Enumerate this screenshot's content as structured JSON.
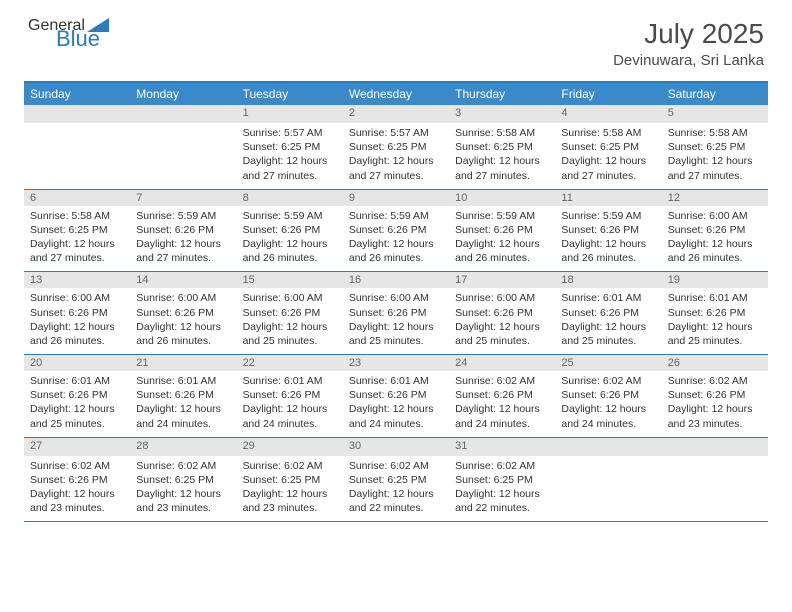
{
  "logo": {
    "part1": "General",
    "part2": "Blue"
  },
  "title": "July 2025",
  "location": "Devinuwara, Sri Lanka",
  "colors": {
    "header_bg": "#3a8ac9",
    "border": "#2b7bbf",
    "daynum_bg": "#e6e6e6",
    "text": "#333333",
    "title_text": "#4a4a4a"
  },
  "day_names": [
    "Sunday",
    "Monday",
    "Tuesday",
    "Wednesday",
    "Thursday",
    "Friday",
    "Saturday"
  ],
  "weeks": [
    [
      null,
      null,
      {
        "n": "1",
        "sr": "5:57 AM",
        "ss": "6:25 PM",
        "dl": "12 hours and 27 minutes."
      },
      {
        "n": "2",
        "sr": "5:57 AM",
        "ss": "6:25 PM",
        "dl": "12 hours and 27 minutes."
      },
      {
        "n": "3",
        "sr": "5:58 AM",
        "ss": "6:25 PM",
        "dl": "12 hours and 27 minutes."
      },
      {
        "n": "4",
        "sr": "5:58 AM",
        "ss": "6:25 PM",
        "dl": "12 hours and 27 minutes."
      },
      {
        "n": "5",
        "sr": "5:58 AM",
        "ss": "6:25 PM",
        "dl": "12 hours and 27 minutes."
      }
    ],
    [
      {
        "n": "6",
        "sr": "5:58 AM",
        "ss": "6:25 PM",
        "dl": "12 hours and 27 minutes."
      },
      {
        "n": "7",
        "sr": "5:59 AM",
        "ss": "6:26 PM",
        "dl": "12 hours and 27 minutes."
      },
      {
        "n": "8",
        "sr": "5:59 AM",
        "ss": "6:26 PM",
        "dl": "12 hours and 26 minutes."
      },
      {
        "n": "9",
        "sr": "5:59 AM",
        "ss": "6:26 PM",
        "dl": "12 hours and 26 minutes."
      },
      {
        "n": "10",
        "sr": "5:59 AM",
        "ss": "6:26 PM",
        "dl": "12 hours and 26 minutes."
      },
      {
        "n": "11",
        "sr": "5:59 AM",
        "ss": "6:26 PM",
        "dl": "12 hours and 26 minutes."
      },
      {
        "n": "12",
        "sr": "6:00 AM",
        "ss": "6:26 PM",
        "dl": "12 hours and 26 minutes."
      }
    ],
    [
      {
        "n": "13",
        "sr": "6:00 AM",
        "ss": "6:26 PM",
        "dl": "12 hours and 26 minutes."
      },
      {
        "n": "14",
        "sr": "6:00 AM",
        "ss": "6:26 PM",
        "dl": "12 hours and 26 minutes."
      },
      {
        "n": "15",
        "sr": "6:00 AM",
        "ss": "6:26 PM",
        "dl": "12 hours and 25 minutes."
      },
      {
        "n": "16",
        "sr": "6:00 AM",
        "ss": "6:26 PM",
        "dl": "12 hours and 25 minutes."
      },
      {
        "n": "17",
        "sr": "6:00 AM",
        "ss": "6:26 PM",
        "dl": "12 hours and 25 minutes."
      },
      {
        "n": "18",
        "sr": "6:01 AM",
        "ss": "6:26 PM",
        "dl": "12 hours and 25 minutes."
      },
      {
        "n": "19",
        "sr": "6:01 AM",
        "ss": "6:26 PM",
        "dl": "12 hours and 25 minutes."
      }
    ],
    [
      {
        "n": "20",
        "sr": "6:01 AM",
        "ss": "6:26 PM",
        "dl": "12 hours and 25 minutes."
      },
      {
        "n": "21",
        "sr": "6:01 AM",
        "ss": "6:26 PM",
        "dl": "12 hours and 24 minutes."
      },
      {
        "n": "22",
        "sr": "6:01 AM",
        "ss": "6:26 PM",
        "dl": "12 hours and 24 minutes."
      },
      {
        "n": "23",
        "sr": "6:01 AM",
        "ss": "6:26 PM",
        "dl": "12 hours and 24 minutes."
      },
      {
        "n": "24",
        "sr": "6:02 AM",
        "ss": "6:26 PM",
        "dl": "12 hours and 24 minutes."
      },
      {
        "n": "25",
        "sr": "6:02 AM",
        "ss": "6:26 PM",
        "dl": "12 hours and 24 minutes."
      },
      {
        "n": "26",
        "sr": "6:02 AM",
        "ss": "6:26 PM",
        "dl": "12 hours and 23 minutes."
      }
    ],
    [
      {
        "n": "27",
        "sr": "6:02 AM",
        "ss": "6:26 PM",
        "dl": "12 hours and 23 minutes."
      },
      {
        "n": "28",
        "sr": "6:02 AM",
        "ss": "6:25 PM",
        "dl": "12 hours and 23 minutes."
      },
      {
        "n": "29",
        "sr": "6:02 AM",
        "ss": "6:25 PM",
        "dl": "12 hours and 23 minutes."
      },
      {
        "n": "30",
        "sr": "6:02 AM",
        "ss": "6:25 PM",
        "dl": "12 hours and 22 minutes."
      },
      {
        "n": "31",
        "sr": "6:02 AM",
        "ss": "6:25 PM",
        "dl": "12 hours and 22 minutes."
      },
      null,
      null
    ]
  ],
  "labels": {
    "sunrise": "Sunrise:",
    "sunset": "Sunset:",
    "daylight": "Daylight:"
  }
}
